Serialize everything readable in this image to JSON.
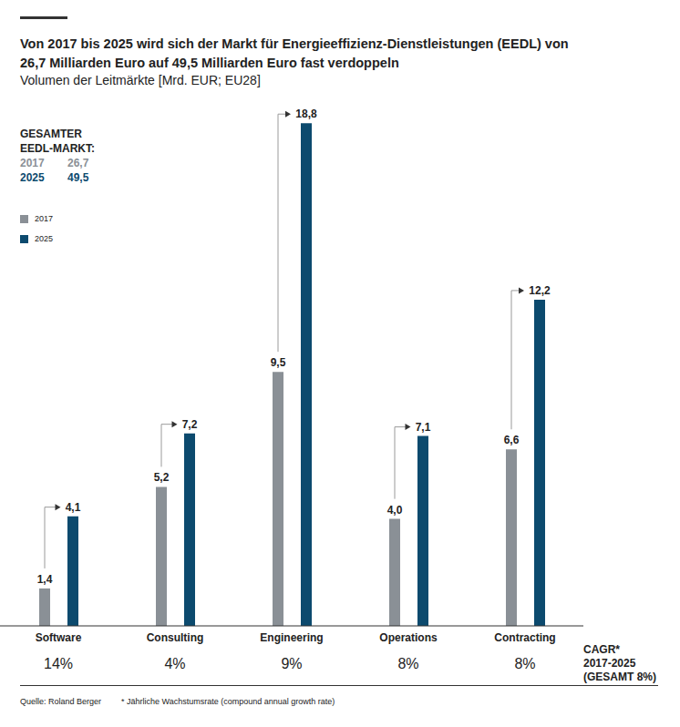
{
  "chart_data": {
    "type": "bar",
    "title": [
      "Von 2017 bis 2025 wird sich der Markt für Energieeffizienz-Dienstleistungen (EEDL) von",
      "26,7 Milliarden Euro auf 49,5 Milliarden Euro fast verdoppeln"
    ],
    "subtitle": "Volumen der Leitmärkte [Mrd. EUR; EU28]",
    "categories": [
      "Software",
      "Consulting",
      "Engineering",
      "Operations",
      "Contracting"
    ],
    "series": [
      {
        "name": "2017",
        "color": "#8a9096",
        "values": [
          1.4,
          5.2,
          9.5,
          4.0,
          6.6
        ],
        "value_labels": [
          "1,4",
          "5,2",
          "9,5",
          "4,0",
          "6,6"
        ]
      },
      {
        "name": "2025",
        "color": "#0c4a6e",
        "values": [
          4.1,
          7.2,
          18.8,
          7.1,
          12.2
        ],
        "value_labels": [
          "4,1",
          "7,2",
          "18,8",
          "7,1",
          "12,2"
        ]
      }
    ],
    "ylim": [
      0,
      20
    ],
    "data_labels": true,
    "tick_labels": "x",
    "legend": "upper left",
    "total_label": [
      "GESAMTER",
      "EEDL-MARKT:"
    ],
    "totals": {
      "values": [
        26.7,
        49.5
      ],
      "value_labels": [
        "26,7",
        "49,5"
      ]
    },
    "cagr": {
      "label": [
        "CAGR*",
        "2017-2025",
        "(GESAMT 8%)"
      ],
      "values": [
        14,
        4,
        9,
        8,
        8
      ],
      "value_labels": [
        "14%",
        "4%",
        "9%",
        "8%",
        "8%"
      ]
    },
    "source": "Quelle: Roland Berger",
    "footnote": "* Jährliche Wachstumsrate (compound annual growth rate)"
  }
}
